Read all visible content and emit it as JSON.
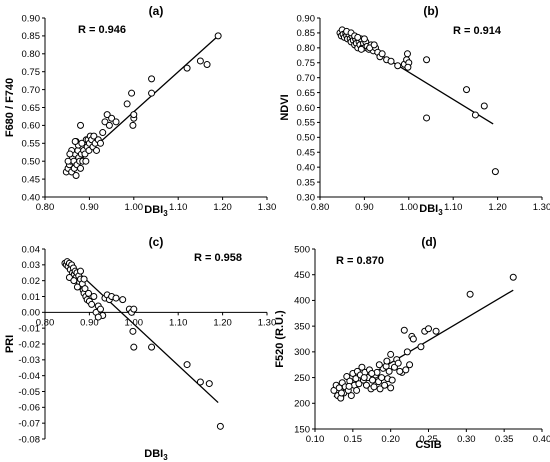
{
  "chart_data": [
    {
      "type": "scatter",
      "panel_label": "(a)",
      "r_label": "R = 0.946",
      "xlabel": "DBI",
      "xlabel_sub": "3",
      "ylabel": "F680 / F740",
      "xlim": [
        0.8,
        1.3
      ],
      "ylim": [
        0.4,
        0.9
      ],
      "xticks": [
        0.8,
        0.9,
        1.0,
        1.1,
        1.2,
        1.3
      ],
      "xtick_labels": [
        "0.80",
        "0.90",
        "1.00",
        "1.10",
        "1.20",
        "1.30"
      ],
      "yticks": [
        0.4,
        0.45,
        0.5,
        0.55,
        0.6,
        0.65,
        0.7,
        0.75,
        0.8,
        0.85,
        0.9
      ],
      "ytick_labels": [
        "0.40",
        "0.45",
        "0.50",
        "0.55",
        "0.60",
        "0.65",
        "0.70",
        "0.75",
        "0.80",
        "0.85",
        "0.90"
      ],
      "trendline": [
        [
          0.845,
          0.465
        ],
        [
          1.19,
          0.85
        ]
      ],
      "points": [
        [
          0.848,
          0.47
        ],
        [
          0.852,
          0.48
        ],
        [
          0.855,
          0.49
        ],
        [
          0.858,
          0.5
        ],
        [
          0.86,
          0.47
        ],
        [
          0.862,
          0.51
        ],
        [
          0.865,
          0.5
        ],
        [
          0.866,
          0.48
        ],
        [
          0.868,
          0.52
        ],
        [
          0.87,
          0.46
        ],
        [
          0.872,
          0.49
        ],
        [
          0.874,
          0.53
        ],
        [
          0.876,
          0.51
        ],
        [
          0.878,
          0.5
        ],
        [
          0.88,
          0.48
        ],
        [
          0.882,
          0.52
        ],
        [
          0.884,
          0.54
        ],
        [
          0.885,
          0.5
        ],
        [
          0.887,
          0.53
        ],
        [
          0.889,
          0.55
        ],
        [
          0.89,
          0.52
        ],
        [
          0.892,
          0.5
        ],
        [
          0.893,
          0.56
        ],
        [
          0.895,
          0.54
        ],
        [
          0.897,
          0.56
        ],
        [
          0.899,
          0.53
        ],
        [
          0.9,
          0.55
        ],
        [
          0.902,
          0.57
        ],
        [
          0.905,
          0.56
        ],
        [
          0.908,
          0.54
        ],
        [
          0.91,
          0.57
        ],
        [
          0.913,
          0.55
        ],
        [
          0.916,
          0.53
        ],
        [
          0.92,
          0.56
        ],
        [
          0.925,
          0.55
        ],
        [
          0.93,
          0.58
        ],
        [
          0.935,
          0.61
        ],
        [
          0.94,
          0.63
        ],
        [
          0.945,
          0.6
        ],
        [
          0.95,
          0.62
        ],
        [
          0.96,
          0.61
        ],
        [
          0.985,
          0.66
        ],
        [
          0.995,
          0.69
        ],
        [
          1.0,
          0.62
        ],
        [
          0.998,
          0.6
        ],
        [
          1.0,
          0.63
        ],
        [
          1.04,
          0.69
        ],
        [
          1.04,
          0.73
        ],
        [
          1.12,
          0.76
        ],
        [
          1.15,
          0.78
        ],
        [
          1.165,
          0.77
        ],
        [
          1.19,
          0.85
        ],
        [
          0.87,
          0.555
        ],
        [
          0.88,
          0.6
        ],
        [
          0.86,
          0.53
        ],
        [
          0.875,
          0.545
        ],
        [
          0.868,
          0.555
        ],
        [
          0.883,
          0.55
        ],
        [
          0.852,
          0.5
        ],
        [
          0.856,
          0.52
        ]
      ]
    },
    {
      "type": "scatter",
      "panel_label": "(b)",
      "r_label": "R = 0.914",
      "xlabel": "DBI",
      "xlabel_sub": "3",
      "ylabel": "NDVI",
      "xlim": [
        0.8,
        1.3
      ],
      "ylim": [
        0.3,
        0.9
      ],
      "xticks": [
        0.8,
        0.9,
        1.0,
        1.1,
        1.2,
        1.3
      ],
      "xtick_labels": [
        "0.80",
        "0.90",
        "1.00",
        "1.10",
        "1.20",
        "1.30"
      ],
      "yticks": [
        0.3,
        0.35,
        0.4,
        0.45,
        0.5,
        0.55,
        0.6,
        0.65,
        0.7,
        0.75,
        0.8,
        0.85,
        0.9
      ],
      "ytick_labels": [
        "0.30",
        "0.35",
        "0.40",
        "0.45",
        "0.50",
        "0.55",
        "0.60",
        "0.65",
        "0.70",
        "0.75",
        "0.80",
        "0.85",
        "0.90"
      ],
      "trendline": [
        [
          0.845,
          0.86
        ],
        [
          1.19,
          0.545
        ]
      ],
      "points": [
        [
          0.845,
          0.85
        ],
        [
          0.848,
          0.84
        ],
        [
          0.85,
          0.86
        ],
        [
          0.852,
          0.845
        ],
        [
          0.855,
          0.835
        ],
        [
          0.858,
          0.85
        ],
        [
          0.86,
          0.84
        ],
        [
          0.862,
          0.83
        ],
        [
          0.865,
          0.845
        ],
        [
          0.868,
          0.83
        ],
        [
          0.87,
          0.82
        ],
        [
          0.872,
          0.84
        ],
        [
          0.875,
          0.825
        ],
        [
          0.878,
          0.81
        ],
        [
          0.88,
          0.83
        ],
        [
          0.882,
          0.815
        ],
        [
          0.885,
          0.8
        ],
        [
          0.888,
          0.82
        ],
        [
          0.89,
          0.81
        ],
        [
          0.892,
          0.83
        ],
        [
          0.895,
          0.8
        ],
        [
          0.898,
          0.815
        ],
        [
          0.9,
          0.8
        ],
        [
          0.903,
          0.82
        ],
        [
          0.906,
          0.805
        ],
        [
          0.91,
          0.795
        ],
        [
          0.915,
          0.81
        ],
        [
          0.92,
          0.79
        ],
        [
          0.925,
          0.8
        ],
        [
          0.93,
          0.785
        ],
        [
          0.935,
          0.77
        ],
        [
          0.94,
          0.78
        ],
        [
          0.95,
          0.76
        ],
        [
          0.96,
          0.755
        ],
        [
          0.975,
          0.74
        ],
        [
          0.99,
          0.745
        ],
        [
          0.995,
          0.76
        ],
        [
          0.997,
          0.78
        ],
        [
          1.0,
          0.75
        ],
        [
          0.998,
          0.735
        ],
        [
          1.04,
          0.76
        ],
        [
          1.04,
          0.565
        ],
        [
          1.13,
          0.66
        ],
        [
          1.15,
          0.575
        ],
        [
          1.17,
          0.605
        ],
        [
          1.195,
          0.385
        ],
        [
          0.86,
          0.855
        ],
        [
          0.87,
          0.85
        ],
        [
          0.878,
          0.84
        ],
        [
          0.885,
          0.835
        ],
        [
          0.893,
          0.795
        ],
        [
          0.9,
          0.83
        ],
        [
          0.912,
          0.8
        ],
        [
          0.922,
          0.81
        ]
      ]
    },
    {
      "type": "scatter",
      "panel_label": "(c)",
      "r_label": "R = 0.958",
      "xlabel": "DBI",
      "xlabel_sub": "3",
      "ylabel": "PRI",
      "xlim": [
        0.8,
        1.3
      ],
      "ylim": [
        -0.08,
        0.04
      ],
      "xticks": [
        0.8,
        0.9,
        1.0,
        1.1,
        1.2,
        1.3
      ],
      "xtick_labels": [
        "0.80",
        "0.90",
        "1.00",
        "1.10",
        "1.20",
        "1.30"
      ],
      "yticks": [
        -0.08,
        -0.07,
        -0.06,
        -0.05,
        -0.04,
        -0.03,
        -0.02,
        -0.01,
        0.0,
        0.01,
        0.02,
        0.03,
        0.04
      ],
      "ytick_labels": [
        "-0.08",
        "-0.07",
        "-0.06",
        "-0.05",
        "-0.04",
        "-0.03",
        "-0.02",
        "-0.01",
        "0.00",
        "0.01",
        "0.02",
        "0.03",
        "0.04"
      ],
      "trendline": [
        [
          0.845,
          0.033
        ],
        [
          1.19,
          -0.057
        ]
      ],
      "points": [
        [
          0.845,
          0.031
        ],
        [
          0.848,
          0.03
        ],
        [
          0.85,
          0.032
        ],
        [
          0.852,
          0.029
        ],
        [
          0.855,
          0.031
        ],
        [
          0.857,
          0.027
        ],
        [
          0.86,
          0.03
        ],
        [
          0.862,
          0.025
        ],
        [
          0.864,
          0.028
        ],
        [
          0.866,
          0.024
        ],
        [
          0.868,
          0.026
        ],
        [
          0.87,
          0.022
        ],
        [
          0.872,
          0.025
        ],
        [
          0.874,
          0.02
        ],
        [
          0.876,
          0.023
        ],
        [
          0.878,
          0.019
        ],
        [
          0.88,
          0.021
        ],
        [
          0.882,
          0.016
        ],
        [
          0.884,
          0.018
        ],
        [
          0.886,
          0.014
        ],
        [
          0.888,
          0.012
        ],
        [
          0.89,
          0.015
        ],
        [
          0.892,
          0.01
        ],
        [
          0.895,
          0.008
        ],
        [
          0.898,
          0.012
        ],
        [
          0.9,
          0.007
        ],
        [
          0.905,
          0.005
        ],
        [
          0.91,
          0.01
        ],
        [
          0.915,
          0.0
        ],
        [
          0.92,
          0.004
        ],
        [
          0.925,
          0.002
        ],
        [
          0.93,
          -0.002
        ],
        [
          0.935,
          0.009
        ],
        [
          0.94,
          0.011
        ],
        [
          0.945,
          0.008
        ],
        [
          0.95,
          0.01
        ],
        [
          0.96,
          0.009
        ],
        [
          0.975,
          0.008
        ],
        [
          0.99,
          0.002
        ],
        [
          0.995,
          0.0
        ],
        [
          1.0,
          0.002
        ],
        [
          0.998,
          -0.012
        ],
        [
          1.0,
          -0.022
        ],
        [
          1.04,
          -0.022
        ],
        [
          1.12,
          -0.033
        ],
        [
          1.15,
          -0.044
        ],
        [
          1.17,
          -0.045
        ],
        [
          1.195,
          -0.072
        ],
        [
          0.855,
          0.022
        ],
        [
          0.865,
          0.02
        ],
        [
          0.873,
          0.016
        ],
        [
          0.88,
          0.026
        ],
        [
          0.888,
          0.021
        ],
        [
          0.92,
          -0.003
        ]
      ]
    },
    {
      "type": "scatter",
      "panel_label": "(d)",
      "r_label": "R = 0.870",
      "xlabel": "CSIB",
      "ylabel": "F520 (R.U.)",
      "xlim": [
        0.1,
        0.4
      ],
      "ylim": [
        150,
        500
      ],
      "xticks": [
        0.1,
        0.15,
        0.2,
        0.25,
        0.3,
        0.35,
        0.4
      ],
      "xtick_labels": [
        "0.10",
        "0.15",
        "0.20",
        "0.25",
        "0.30",
        "0.35",
        "0.40"
      ],
      "yticks": [
        150,
        200,
        250,
        300,
        350,
        400,
        450,
        500
      ],
      "ytick_labels": [
        "150",
        "200",
        "250",
        "300",
        "350",
        "400",
        "450",
        "500"
      ],
      "trendline": [
        [
          0.125,
          213
        ],
        [
          0.362,
          420
        ]
      ],
      "points": [
        [
          0.125,
          225
        ],
        [
          0.128,
          235
        ],
        [
          0.13,
          215
        ],
        [
          0.132,
          230
        ],
        [
          0.134,
          210
        ],
        [
          0.136,
          240
        ],
        [
          0.138,
          220
        ],
        [
          0.14,
          232
        ],
        [
          0.142,
          252
        ],
        [
          0.144,
          225
        ],
        [
          0.146,
          243
        ],
        [
          0.148,
          215
        ],
        [
          0.15,
          258
        ],
        [
          0.152,
          235
        ],
        [
          0.154,
          248
        ],
        [
          0.156,
          262
        ],
        [
          0.158,
          238
        ],
        [
          0.16,
          255
        ],
        [
          0.162,
          270
        ],
        [
          0.164,
          245
        ],
        [
          0.166,
          260
        ],
        [
          0.168,
          235
        ],
        [
          0.17,
          250
        ],
        [
          0.172,
          265
        ],
        [
          0.174,
          228
        ],
        [
          0.176,
          245
        ],
        [
          0.178,
          232
        ],
        [
          0.18,
          255
        ],
        [
          0.182,
          260
        ],
        [
          0.184,
          242
        ],
        [
          0.186,
          228
        ],
        [
          0.188,
          250
        ],
        [
          0.19,
          268
        ],
        [
          0.192,
          235
        ],
        [
          0.194,
          272
        ],
        [
          0.196,
          248
        ],
        [
          0.198,
          262
        ],
        [
          0.2,
          295
        ],
        [
          0.202,
          245
        ],
        [
          0.205,
          270
        ],
        [
          0.208,
          285
        ],
        [
          0.21,
          278
        ],
        [
          0.215,
          260
        ],
        [
          0.218,
          342
        ],
        [
          0.222,
          300
        ],
        [
          0.225,
          275
        ],
        [
          0.228,
          330
        ],
        [
          0.23,
          325
        ],
        [
          0.24,
          310
        ],
        [
          0.245,
          340
        ],
        [
          0.25,
          345
        ],
        [
          0.26,
          340
        ],
        [
          0.305,
          412
        ],
        [
          0.362,
          445
        ],
        [
          0.135,
          220
        ],
        [
          0.145,
          233
        ],
        [
          0.155,
          225
        ],
        [
          0.165,
          250
        ],
        [
          0.175,
          258
        ],
        [
          0.185,
          275
        ],
        [
          0.195,
          282
        ],
        [
          0.2,
          230
        ],
        [
          0.212,
          262
        ],
        [
          0.22,
          265
        ]
      ]
    }
  ]
}
